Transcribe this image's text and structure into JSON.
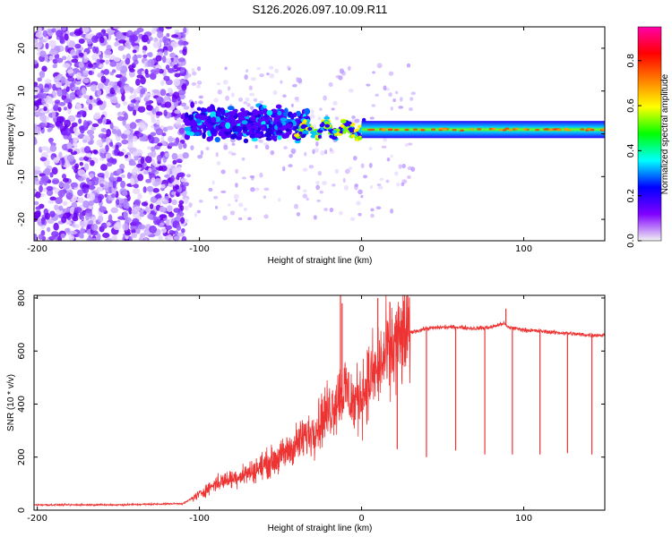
{
  "title": "S126.2026.097.10.09.R11",
  "chart_data": [
    {
      "type": "heatmap",
      "xlabel": "Height of straight line (km)",
      "ylabel": "Frequency (Hz)",
      "xlim": [
        -202,
        150
      ],
      "ylim": [
        -25,
        25
      ],
      "xticks": [
        -200,
        -100,
        0,
        100
      ],
      "xtick_labels": [
        "-200",
        "-100",
        "0",
        "100"
      ],
      "yticks": [
        -20,
        -10,
        0,
        10,
        20
      ],
      "ytick_labels": [
        "-20",
        "-10",
        "0",
        "10",
        "20"
      ],
      "colorbar": {
        "label": "Normalized spectral amplitude",
        "range": [
          0,
          0.95
        ],
        "ticks": [
          0,
          0.2,
          0.4,
          0.6,
          0.8
        ],
        "tick_labels": [
          "0.0",
          "0.2",
          "0.4",
          "0.6",
          "0.8"
        ],
        "colormap": [
          "#f2f2f2",
          "#8000ff",
          "#0000ff",
          "#00ffff",
          "#00ff00",
          "#ffff00",
          "#ff8000",
          "#ff0000",
          "#ff00aa"
        ]
      },
      "regions": [
        {
          "x_range": [
            -200,
            -108
          ],
          "description": "scattered low-amplitude noise across full band",
          "amplitude": 0.1
        },
        {
          "x_range": [
            -108,
            -40
          ],
          "description": "broad signal cluster",
          "freq_range": [
            -3,
            10
          ],
          "amplitude": 0.25
        },
        {
          "x_range": [
            -40,
            150
          ],
          "description": "narrow carrier line near 1 Hz",
          "freq_center": 1,
          "amplitude": 0.75
        }
      ]
    },
    {
      "type": "line",
      "xlabel": "Height of straight line (km)",
      "ylabel": "SNR (10 * v/v)",
      "xlim": [
        -202,
        150
      ],
      "ylim": [
        0,
        810
      ],
      "xticks": [
        -200,
        -100,
        0,
        100
      ],
      "xtick_labels": [
        "-200",
        "-100",
        "0",
        "100"
      ],
      "yticks": [
        0,
        200,
        400,
        600,
        800
      ],
      "ytick_labels": [
        "0",
        "200",
        "400",
        "600",
        "800"
      ],
      "line_color": "#ee3333",
      "series": [
        {
          "name": "SNR",
          "x": [
            -202,
            -150,
            -110,
            -100,
            -90,
            -80,
            -70,
            -60,
            -50,
            -40,
            -30,
            -20,
            -15,
            -10,
            -5,
            0,
            5,
            10,
            15,
            20,
            25,
            30,
            40,
            50,
            60,
            70,
            80,
            88,
            90,
            100,
            110,
            120,
            130,
            140,
            150
          ],
          "y": [
            20,
            20,
            25,
            60,
            100,
            120,
            140,
            170,
            200,
            250,
            300,
            380,
            420,
            460,
            400,
            440,
            490,
            530,
            580,
            620,
            650,
            670,
            685,
            690,
            690,
            685,
            690,
            705,
            690,
            680,
            675,
            670,
            665,
            660,
            660
          ]
        }
      ],
      "peaks": [
        {
          "x": -13,
          "y": 810
        },
        {
          "x": -12,
          "y": 780
        },
        {
          "x": 10,
          "y": 800
        },
        {
          "x": 89,
          "y": 760
        }
      ],
      "dropouts": [
        {
          "x": 22,
          "y": 230
        },
        {
          "x": 40,
          "y": 200
        },
        {
          "x": 58,
          "y": 225
        },
        {
          "x": 76,
          "y": 210
        },
        {
          "x": 93,
          "y": 210
        },
        {
          "x": 110,
          "y": 210
        },
        {
          "x": 127,
          "y": 215
        },
        {
          "x": 142,
          "y": 210
        }
      ]
    }
  ]
}
